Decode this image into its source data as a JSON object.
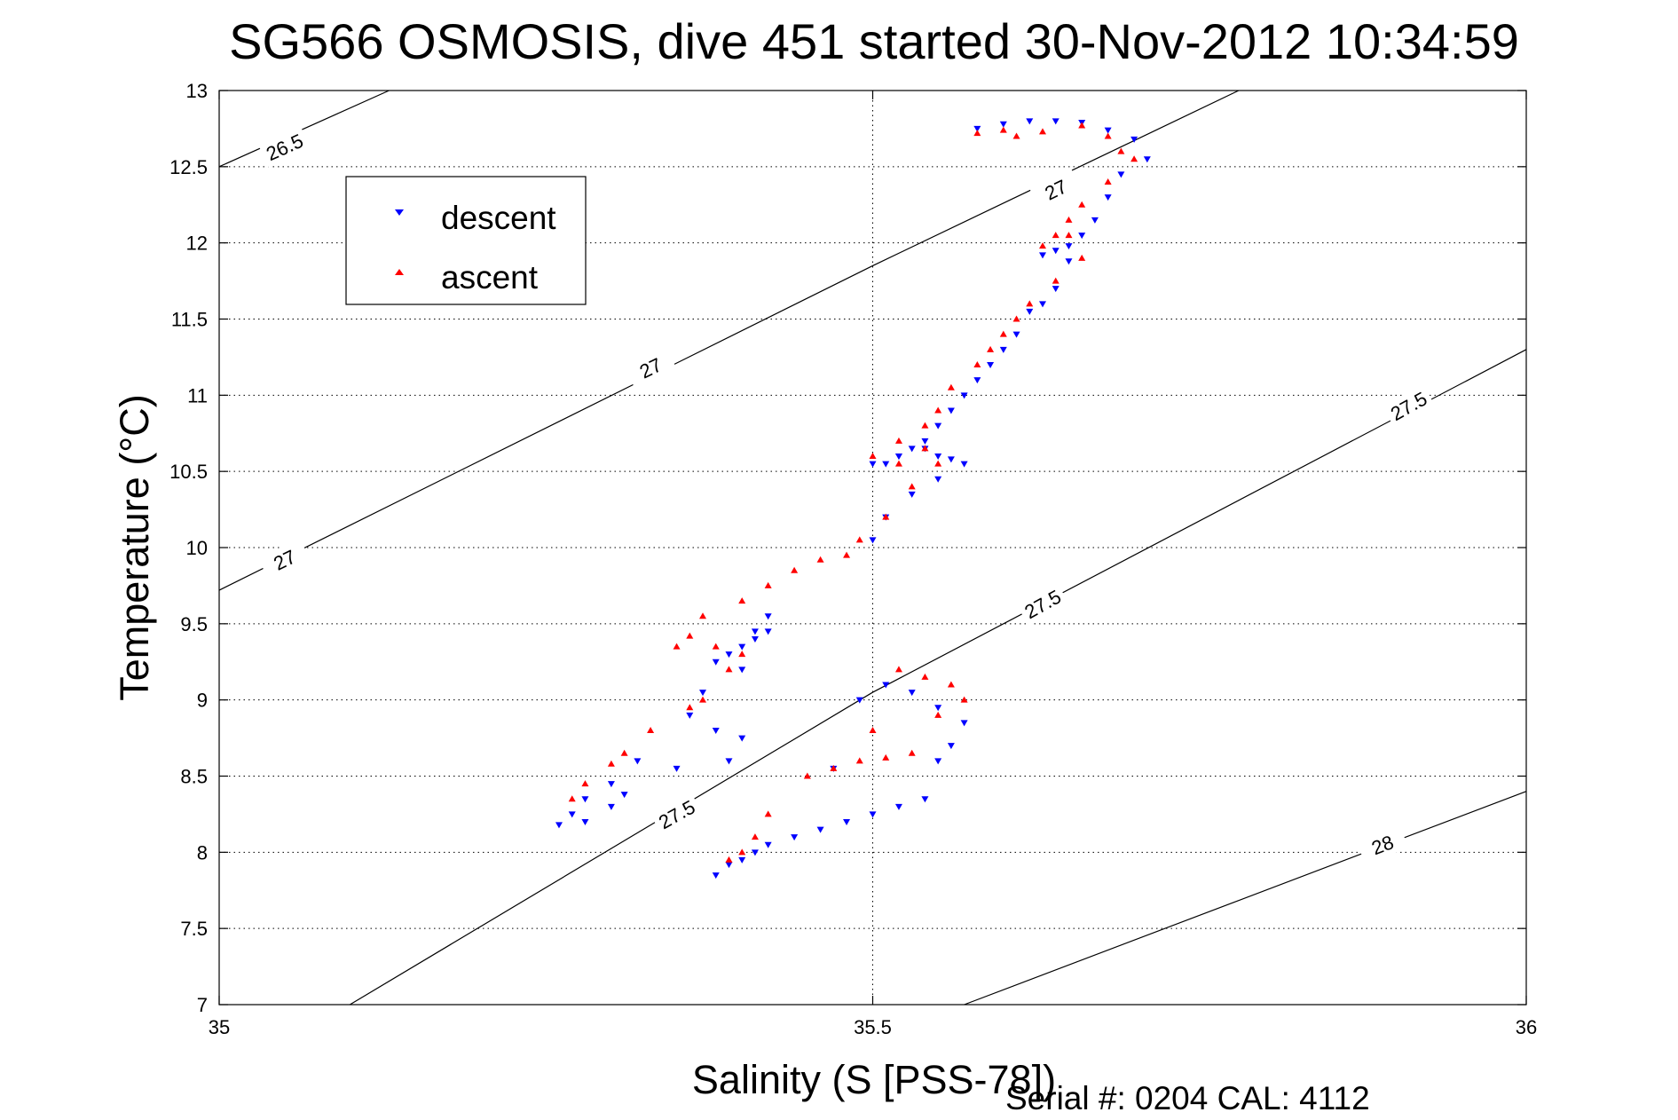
{
  "chart_data": {
    "type": "scatter",
    "title": "SG566 OSMOSIS, dive 451 started 30-Nov-2012 10:34:59",
    "xlabel": "Salinity (S [PSS-78])",
    "ylabel": "Temperature (°C)",
    "xlim": [
      35,
      36
    ],
    "ylim": [
      7,
      13
    ],
    "xticks": [
      "35",
      "35.5",
      "36"
    ],
    "yticks": [
      "7",
      "7.5",
      "8",
      "8.5",
      "9",
      "9.5",
      "10",
      "10.5",
      "11",
      "11.5",
      "12",
      "12.5",
      "13"
    ],
    "grid": "dotted",
    "legend": {
      "placement": "top-left",
      "entries": [
        {
          "label": "descent",
          "color": "#0000ff",
          "marker": "triangle-down"
        },
        {
          "label": "ascent",
          "color": "#ff0000",
          "marker": "triangle-up"
        }
      ]
    },
    "density_contours": [
      {
        "label": "26.5",
        "points": [
          [
            35.0,
            12.5
          ],
          [
            35.13,
            13.0
          ]
        ],
        "label_at": [
          [
            35.05,
            12.63
          ]
        ]
      },
      {
        "label": "27",
        "points": [
          [
            35.0,
            9.72
          ],
          [
            35.5,
            11.85
          ],
          [
            35.78,
            13.0
          ]
        ],
        "label_at": [
          [
            35.05,
            9.92
          ],
          [
            35.33,
            11.18
          ],
          [
            35.64,
            12.35
          ]
        ]
      },
      {
        "label": "27.5",
        "points": [
          [
            35.1,
            7.0
          ],
          [
            35.5,
            9.05
          ],
          [
            36.0,
            11.3
          ]
        ],
        "label_at": [
          [
            35.35,
            8.25
          ],
          [
            35.63,
            9.63
          ],
          [
            35.91,
            10.93
          ]
        ]
      },
      {
        "label": "28",
        "points": [
          [
            35.57,
            7.0
          ],
          [
            36.0,
            8.4
          ]
        ],
        "label_at": [
          [
            35.89,
            8.05
          ]
        ]
      }
    ],
    "series": [
      {
        "name": "descent",
        "color": "#0000ff",
        "marker": "triangle-down",
        "x": [
          35.58,
          35.6,
          35.62,
          35.64,
          35.66,
          35.68,
          35.7,
          35.71,
          35.69,
          35.68,
          35.67,
          35.66,
          35.65,
          35.64,
          35.63,
          35.65,
          35.64,
          35.63,
          35.62,
          35.61,
          35.6,
          35.59,
          35.58,
          35.57,
          35.56,
          35.55,
          35.54,
          35.53,
          35.52,
          35.51,
          35.5,
          35.52,
          35.54,
          35.55,
          35.56,
          35.57,
          35.55,
          35.53,
          35.51,
          35.5,
          35.42,
          35.41,
          35.4,
          35.39,
          35.38,
          35.41,
          35.42,
          35.4,
          35.37,
          35.36,
          35.38,
          35.4,
          35.39,
          35.35,
          35.3,
          35.28,
          35.27,
          35.26,
          35.28,
          35.3,
          35.31,
          35.32,
          35.38,
          35.39,
          35.4,
          35.41,
          35.42,
          35.44,
          35.46,
          35.48,
          35.5,
          35.52,
          35.54,
          35.55,
          35.56,
          35.57,
          35.55,
          35.53,
          35.51,
          35.49,
          35.47
        ],
        "y": [
          12.75,
          12.78,
          12.8,
          12.8,
          12.79,
          12.74,
          12.68,
          12.55,
          12.45,
          12.3,
          12.15,
          12.05,
          11.98,
          11.95,
          11.92,
          11.88,
          11.7,
          11.6,
          11.55,
          11.4,
          11.3,
          11.2,
          11.1,
          11.0,
          10.9,
          10.8,
          10.7,
          10.65,
          10.6,
          10.55,
          10.55,
          10.6,
          10.65,
          10.6,
          10.58,
          10.55,
          10.45,
          10.35,
          10.2,
          10.05,
          9.55,
          9.45,
          9.35,
          9.3,
          9.25,
          9.4,
          9.45,
          9.2,
          9.05,
          8.9,
          8.8,
          8.75,
          8.6,
          8.55,
          8.45,
          8.35,
          8.25,
          8.18,
          8.2,
          8.3,
          8.38,
          8.6,
          7.85,
          7.92,
          7.95,
          8.0,
          8.05,
          8.1,
          8.15,
          8.2,
          8.25,
          8.3,
          8.35,
          8.6,
          8.7,
          8.85,
          8.95,
          9.05,
          9.1,
          9.0,
          8.55
        ]
      },
      {
        "name": "ascent",
        "color": "#ff0000",
        "marker": "triangle-up",
        "x": [
          35.58,
          35.6,
          35.61,
          35.63,
          35.66,
          35.68,
          35.69,
          35.7,
          35.68,
          35.66,
          35.65,
          35.64,
          35.63,
          35.65,
          35.66,
          35.64,
          35.62,
          35.61,
          35.6,
          35.59,
          35.58,
          35.56,
          35.55,
          35.54,
          35.52,
          35.5,
          35.52,
          35.54,
          35.55,
          35.53,
          35.51,
          35.49,
          35.48,
          35.46,
          35.44,
          35.42,
          35.4,
          35.37,
          35.36,
          35.35,
          35.38,
          35.4,
          35.39,
          35.37,
          35.36,
          35.33,
          35.31,
          35.3,
          35.28,
          35.27,
          35.39,
          35.4,
          35.41,
          35.42,
          35.45,
          35.47,
          35.49,
          35.51,
          35.53,
          35.55,
          35.57,
          35.56,
          35.54,
          35.52,
          35.5
        ],
        "y": [
          12.72,
          12.74,
          12.7,
          12.73,
          12.77,
          12.7,
          12.6,
          12.55,
          12.4,
          12.25,
          12.15,
          12.05,
          11.98,
          12.05,
          11.9,
          11.75,
          11.6,
          11.5,
          11.4,
          11.3,
          11.2,
          11.05,
          10.9,
          10.8,
          10.7,
          10.6,
          10.55,
          10.65,
          10.55,
          10.4,
          10.2,
          10.05,
          9.95,
          9.92,
          9.85,
          9.75,
          9.65,
          9.55,
          9.42,
          9.35,
          9.35,
          9.3,
          9.2,
          9.0,
          8.95,
          8.8,
          8.65,
          8.58,
          8.45,
          8.35,
          7.95,
          8.0,
          8.1,
          8.25,
          8.5,
          8.55,
          8.6,
          8.62,
          8.65,
          8.9,
          9.0,
          9.1,
          9.15,
          9.2,
          8.8
        ]
      }
    ]
  },
  "footer": {
    "serial": "Serial #: 0204  CAL: 4112"
  }
}
